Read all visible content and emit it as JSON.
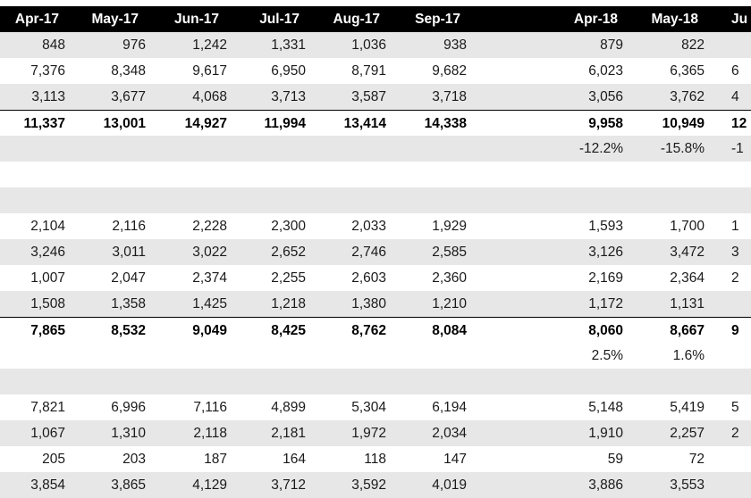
{
  "header": [
    "Apr-17",
    "May-17",
    "Jun-17",
    "Jul-17",
    "Aug-17",
    "Sep-17",
    "Apr-18",
    "May-18",
    "Ju"
  ],
  "rows": [
    {
      "style": "shade",
      "cells": [
        "848",
        "976",
        "1,242",
        "1,331",
        "1,036",
        "938",
        "879",
        "822",
        ""
      ]
    },
    {
      "style": "plain",
      "cells": [
        "7,376",
        "8,348",
        "9,617",
        "6,950",
        "8,791",
        "9,682",
        "6,023",
        "6,365",
        "6"
      ]
    },
    {
      "style": "shade",
      "cells": [
        "3,113",
        "3,677",
        "4,068",
        "3,713",
        "3,587",
        "3,718",
        "3,056",
        "3,762",
        "4"
      ]
    },
    {
      "style": "total",
      "cells": [
        "11,337",
        "13,001",
        "14,927",
        "11,994",
        "13,414",
        "14,338",
        "9,958",
        "10,949",
        "12"
      ]
    },
    {
      "style": "shade",
      "cells": [
        "",
        "",
        "",
        "",
        "",
        "",
        "-12.2%",
        "-15.8%",
        "-1"
      ]
    },
    {
      "style": "plain",
      "cells": [
        "",
        "",
        "",
        "",
        "",
        "",
        "",
        "",
        ""
      ]
    },
    {
      "style": "shade",
      "cells": [
        "",
        "",
        "",
        "",
        "",
        "",
        "",
        "",
        ""
      ]
    },
    {
      "style": "plain",
      "cells": [
        "2,104",
        "2,116",
        "2,228",
        "2,300",
        "2,033",
        "1,929",
        "1,593",
        "1,700",
        "1"
      ]
    },
    {
      "style": "shade",
      "cells": [
        "3,246",
        "3,011",
        "3,022",
        "2,652",
        "2,746",
        "2,585",
        "3,126",
        "3,472",
        "3"
      ]
    },
    {
      "style": "plain",
      "cells": [
        "1,007",
        "2,047",
        "2,374",
        "2,255",
        "2,603",
        "2,360",
        "2,169",
        "2,364",
        "2"
      ]
    },
    {
      "style": "shade",
      "cells": [
        "1,508",
        "1,358",
        "1,425",
        "1,218",
        "1,380",
        "1,210",
        "1,172",
        "1,131",
        ""
      ]
    },
    {
      "style": "total",
      "cells": [
        "7,865",
        "8,532",
        "9,049",
        "8,425",
        "8,762",
        "8,084",
        "8,060",
        "8,667",
        "9"
      ]
    },
    {
      "style": "plain",
      "cells": [
        "",
        "",
        "",
        "",
        "",
        "",
        "2.5%",
        "1.6%",
        ""
      ]
    },
    {
      "style": "shade",
      "cells": [
        "",
        "",
        "",
        "",
        "",
        "",
        "",
        "",
        ""
      ]
    },
    {
      "style": "plain",
      "cells": [
        "7,821",
        "6,996",
        "7,116",
        "4,899",
        "5,304",
        "6,194",
        "5,148",
        "5,419",
        "5"
      ]
    },
    {
      "style": "shade",
      "cells": [
        "1,067",
        "1,310",
        "2,118",
        "2,181",
        "1,972",
        "2,034",
        "1,910",
        "2,257",
        "2"
      ]
    },
    {
      "style": "plain",
      "cells": [
        "205",
        "203",
        "187",
        "164",
        "118",
        "147",
        "59",
        "72",
        ""
      ]
    },
    {
      "style": "shade",
      "cells": [
        "3,854",
        "3,865",
        "4,129",
        "3,712",
        "3,592",
        "4,019",
        "3,886",
        "3,553",
        ""
      ]
    }
  ]
}
